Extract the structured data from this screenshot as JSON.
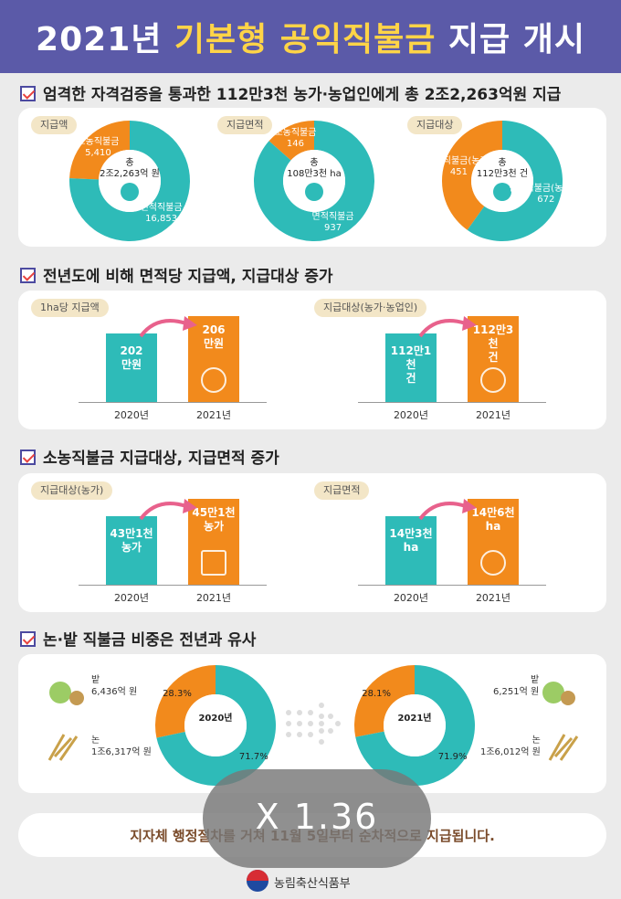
{
  "title": {
    "pre": "2021년 ",
    "highlight": "기본형 공익직불금",
    "post": " 지급 개시"
  },
  "colors": {
    "teal": "#2ebbb8",
    "orange": "#f28a1c",
    "purple": "#5b5aa8"
  },
  "sections": {
    "s1": {
      "heading": "엄격한 자격검증을 통과한 112만3천 농가·농업인에게 총 2조2,263억원 지급"
    },
    "s2": {
      "heading": "전년도에 비해 면적당 지급액, 지급대상 증가"
    },
    "s3": {
      "heading": "소농직불금 지급대상, 지급면적 증가"
    },
    "s4": {
      "heading": "논·밭 직불금 비중은 전년과 유사"
    }
  },
  "chart_data": [
    {
      "type": "pie",
      "tag": "지급액",
      "center": [
        "총",
        "2조2,263억 원"
      ],
      "icon": "money-bag-icon",
      "slices": [
        {
          "name": "소농직불금",
          "value": 5410,
          "label": "5,410",
          "color": "#f28a1c"
        },
        {
          "name": "면적직불금",
          "value": 16853,
          "label": "16,853",
          "color": "#2ebbb8"
        }
      ]
    },
    {
      "type": "pie",
      "tag": "지급면적",
      "center": [
        "총",
        "108만3천 ha"
      ],
      "icon": "crop-field-icon",
      "slices": [
        {
          "name": "소농직불금",
          "value": 146,
          "label": "146",
          "color": "#f28a1c"
        },
        {
          "name": "면적직불금",
          "value": 937,
          "label": "937",
          "color": "#2ebbb8"
        }
      ]
    },
    {
      "type": "pie",
      "tag": "지급대상",
      "center": [
        "총",
        "112만3천 건"
      ],
      "icon": "farmer-icon",
      "slices": [
        {
          "name": "소농직불금(농가)",
          "value": 451,
          "label": "451",
          "color": "#f28a1c"
        },
        {
          "name": "면적직불금(농업인)",
          "value": 672,
          "label": "672",
          "color": "#2ebbb8"
        }
      ]
    },
    {
      "type": "bar",
      "tag": "1ha당 지급액",
      "categories": [
        "2020년",
        "2021년"
      ],
      "values": [
        202,
        206
      ],
      "labels": [
        "202\n만원",
        "206\n만원"
      ],
      "icon": "money-bag-icon"
    },
    {
      "type": "bar",
      "tag": "지급대상(농가·농업인)",
      "categories": [
        "2020년",
        "2021년"
      ],
      "values": [
        1121000,
        1123000
      ],
      "labels": [
        "112만1천\n건",
        "112만3천\n건"
      ],
      "icon": "farmer-icon"
    },
    {
      "type": "bar",
      "tag": "지급대상(농가)",
      "categories": [
        "2020년",
        "2021년"
      ],
      "values": [
        431000,
        451000
      ],
      "labels": [
        "43만1천\n농가",
        "45만1천\n농가"
      ],
      "icon": "house-icon"
    },
    {
      "type": "bar",
      "tag": "지급면적",
      "categories": [
        "2020년",
        "2021년"
      ],
      "values": [
        143000,
        146000
      ],
      "labels": [
        "14만3천\nha",
        "14만6천\nha"
      ],
      "icon": "field-icon"
    },
    {
      "type": "pie",
      "center": [
        "2020년"
      ],
      "slices": [
        {
          "name": "밭",
          "value": 28.3,
          "label": "28.3%",
          "amount": "6,436억 원",
          "color": "#f28a1c"
        },
        {
          "name": "논",
          "value": 71.7,
          "label": "71.7%",
          "amount": "1조6,317억 원",
          "color": "#2ebbb8"
        }
      ]
    },
    {
      "type": "pie",
      "center": [
        "2021년"
      ],
      "slices": [
        {
          "name": "밭",
          "value": 28.1,
          "label": "28.1%",
          "amount": "6,251억 원",
          "color": "#f28a1c"
        },
        {
          "name": "논",
          "value": 71.9,
          "label": "71.9%",
          "amount": "1조6,012억 원",
          "color": "#2ebbb8"
        }
      ]
    }
  ],
  "footer": {
    "message": "지자체 행정절차를 거쳐 11월 5일부터 순차적으로 지급됩니다."
  },
  "zoom_badge": "X 1.36",
  "ministry": "농림축산식품부"
}
